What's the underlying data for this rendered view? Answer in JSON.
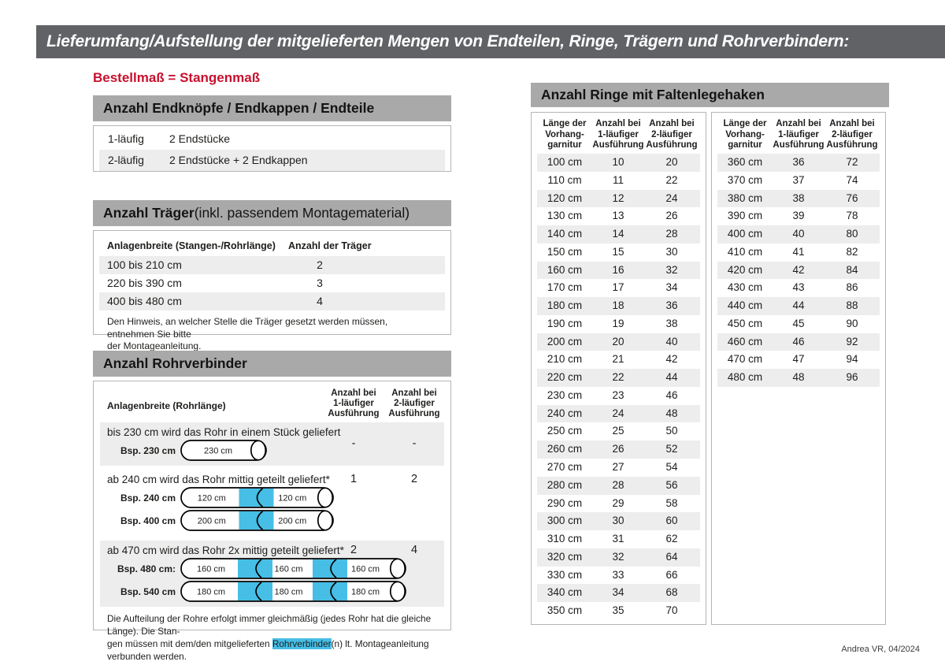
{
  "page": {
    "title": "Lieferumfang/Aufstellung der mitgelieferten Mengen von Endteilen, Ringe, Trägern und Rohrverbindern:",
    "subtitle": "Bestellmaß = Stangenmaß",
    "footer": "Andrea VR, 04/2024"
  },
  "colors": {
    "titlebar_gray": "#616266",
    "section_header_gray": "#a9a9a9",
    "row_band_gray": "#ededed",
    "accent_red": "#c8102e",
    "connector_blue": "#46bee6",
    "border_gray": "#b5b5b5"
  },
  "endpieces": {
    "title": "Anzahl Endknöpfe / Endkappen / Endteile",
    "rows": [
      {
        "type": "1-läufig",
        "parts": "2 Endstücke"
      },
      {
        "type": "2-läufig",
        "parts": "2 Endstücke + 2 Endkappen"
      }
    ]
  },
  "traeger": {
    "title_bold": "Anzahl Träger",
    "title_rest": " (inkl. passendem Montagematerial)",
    "col1": "Anlagenbreite (Stangen-/Rohrlänge)",
    "col2": "Anzahl der Träger",
    "rows": [
      {
        "range": "100 bis 210 cm",
        "count": "2"
      },
      {
        "range": "220 bis 390 cm",
        "count": "3"
      },
      {
        "range": "400 bis 480 cm",
        "count": "4"
      }
    ],
    "note_line1": "Den Hinweis, an welcher Stelle die Träger gesetzt werden müssen, entnehmen Sie bitte",
    "note_line2": "der Montageanleitung."
  },
  "rohrverbinder": {
    "title": "Anzahl Rohrverbinder",
    "col1": "Anlagenbreite (Rohrlänge)",
    "col2": "Anzahl bei\n1-läufiger\nAusführung",
    "col3": "Anzahl bei\n2-läufiger\nAusführung",
    "blocks": [
      {
        "text": "bis 230 cm wird das Rohr in einem Stück geliefert",
        "count1": "-",
        "count2": "-",
        "pipes": [
          {
            "label": "Bsp. 230 cm",
            "segments": [
              "230 cm"
            ]
          }
        ]
      },
      {
        "text": "ab 240 cm wird das Rohr mittig geteilt geliefert*",
        "count1": "1",
        "count2": "2",
        "pipes": [
          {
            "label": "Bsp. 240 cm",
            "segments": [
              "120 cm",
              "120 cm"
            ]
          },
          {
            "label": "Bsp. 400 cm",
            "segments": [
              "200 cm",
              "200 cm"
            ]
          }
        ]
      },
      {
        "text": "ab 470 cm wird das Rohr 2x mittig geteilt geliefert*",
        "count1": "2",
        "count2": "4",
        "pipes": [
          {
            "label": "Bsp. 480 cm:",
            "segments": [
              "160 cm",
              "160 cm",
              "160 cm"
            ]
          },
          {
            "label": "Bsp. 540 cm",
            "segments": [
              "180 cm",
              "180 cm",
              "180 cm"
            ]
          }
        ]
      }
    ],
    "note_line1": "Die Aufteilung der Rohre erfolgt immer gleichmäßig (jedes Rohr hat die gleiche Länge). Die Stan-",
    "note_line2_pre": "gen müssen mit dem/den mitgelieferten ",
    "note_highlight": "Rohrverbinder",
    "note_line2_post": "(n) lt. Montageanleitung verbunden werden."
  },
  "ringe": {
    "title": "Anzahl Ringe mit Faltenlegehaken",
    "col1": "Länge der\nVorhang-\ngarnitur",
    "col2": "Anzahl bei\n1-läufiger\nAusführung",
    "col3": "Anzahl bei\n2-läufiger\nAusführung",
    "table1": [
      [
        "100 cm",
        "10",
        "20"
      ],
      [
        "110 cm",
        "11",
        "22"
      ],
      [
        "120 cm",
        "12",
        "24"
      ],
      [
        "130 cm",
        "13",
        "26"
      ],
      [
        "140 cm",
        "14",
        "28"
      ],
      [
        "150 cm",
        "15",
        "30"
      ],
      [
        "160 cm",
        "16",
        "32"
      ],
      [
        "170 cm",
        "17",
        "34"
      ],
      [
        "180 cm",
        "18",
        "36"
      ],
      [
        "190 cm",
        "19",
        "38"
      ],
      [
        "200 cm",
        "20",
        "40"
      ],
      [
        "210 cm",
        "21",
        "42"
      ],
      [
        "220 cm",
        "22",
        "44"
      ],
      [
        "230 cm",
        "23",
        "46"
      ],
      [
        "240 cm",
        "24",
        "48"
      ],
      [
        "250 cm",
        "25",
        "50"
      ],
      [
        "260 cm",
        "26",
        "52"
      ],
      [
        "270 cm",
        "27",
        "54"
      ],
      [
        "280 cm",
        "28",
        "56"
      ],
      [
        "290 cm",
        "29",
        "58"
      ],
      [
        "300 cm",
        "30",
        "60"
      ],
      [
        "310 cm",
        "31",
        "62"
      ],
      [
        "320 cm",
        "32",
        "64"
      ],
      [
        "330 cm",
        "33",
        "66"
      ],
      [
        "340 cm",
        "34",
        "68"
      ],
      [
        "350 cm",
        "35",
        "70"
      ]
    ],
    "table2": [
      [
        "360 cm",
        "36",
        "72"
      ],
      [
        "370 cm",
        "37",
        "74"
      ],
      [
        "380 cm",
        "38",
        "76"
      ],
      [
        "390 cm",
        "39",
        "78"
      ],
      [
        "400 cm",
        "40",
        "80"
      ],
      [
        "410 cm",
        "41",
        "82"
      ],
      [
        "420 cm",
        "42",
        "84"
      ],
      [
        "430 cm",
        "43",
        "86"
      ],
      [
        "440 cm",
        "44",
        "88"
      ],
      [
        "450 cm",
        "45",
        "90"
      ],
      [
        "460 cm",
        "46",
        "92"
      ],
      [
        "470 cm",
        "47",
        "94"
      ],
      [
        "480 cm",
        "48",
        "96"
      ]
    ]
  }
}
